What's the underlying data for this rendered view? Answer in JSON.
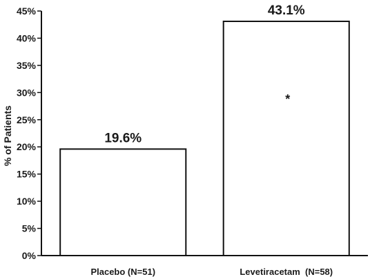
{
  "chart_data": {
    "type": "bar",
    "categories": [
      "Placebo (N=51)",
      "Levetiracetam  (N=58)"
    ],
    "values": [
      19.6,
      43.1
    ],
    "data_labels": [
      "19.6%",
      "43.1%"
    ],
    "title": "",
    "xlabel": "",
    "ylabel": "% of Patients",
    "ylim": [
      0,
      45
    ],
    "y_ticks": [
      0,
      5,
      10,
      15,
      20,
      25,
      30,
      35,
      40,
      45
    ],
    "y_tick_labels": [
      "0%",
      "5%",
      "10%",
      "15%",
      "20%",
      "25%",
      "30%",
      "35%",
      "40%",
      "45%"
    ],
    "annotations": [
      {
        "category_index": 1,
        "text": "*"
      }
    ],
    "grid": false,
    "legend": "none"
  }
}
